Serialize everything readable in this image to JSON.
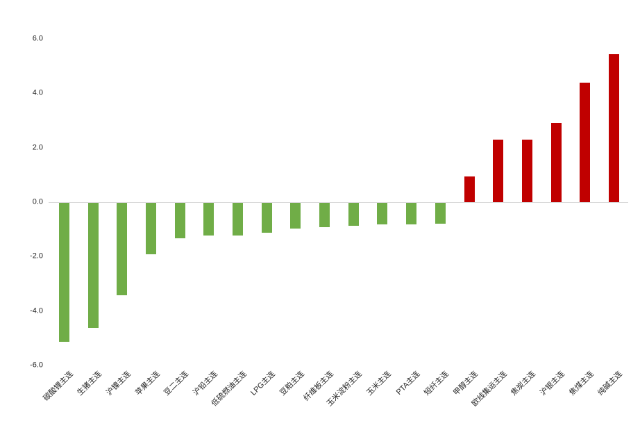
{
  "chart_data": {
    "type": "bar",
    "title": "",
    "xlabel": "",
    "ylabel": "",
    "categories": [
      "碳酸锂主连",
      "生猪主连",
      "沪镍主连",
      "苹果主连",
      "豆二主连",
      "沪铅主连",
      "低硫燃油主连",
      "LPG主连",
      "豆粕主连",
      "纤维板主连",
      "玉米淀粉主连",
      "玉米主连",
      "PTA主连",
      "短纤主连",
      "甲醇主连",
      "欧线集运主连",
      "焦炭主连",
      "沪银主连",
      "焦煤主连",
      "纯碱主连"
    ],
    "values": [
      -5.1,
      -4.6,
      -3.4,
      -1.9,
      -1.3,
      -1.2,
      -1.2,
      -1.1,
      -0.95,
      -0.9,
      -0.85,
      -0.8,
      -0.78,
      -0.77,
      0.95,
      2.3,
      2.3,
      2.9,
      4.4,
      5.45
    ],
    "ylim": [
      -6.0,
      6.0
    ],
    "yticks": [
      {
        "value": 6,
        "label": "6.0"
      },
      {
        "value": 4,
        "label": "4.0"
      },
      {
        "value": 2,
        "label": "2.0"
      },
      {
        "value": 0,
        "label": "0.0"
      },
      {
        "value": -2,
        "label": "-2.0"
      },
      {
        "value": -4,
        "label": "-4.0"
      },
      {
        "value": -6,
        "label": "-6.0"
      }
    ],
    "grid": "off",
    "legend": "none",
    "colors": {
      "positive": "#C00000",
      "negative": "#70AD47",
      "axis_line": "#D9D9D9",
      "text": "#262626",
      "background": "#FFFFFF"
    }
  }
}
